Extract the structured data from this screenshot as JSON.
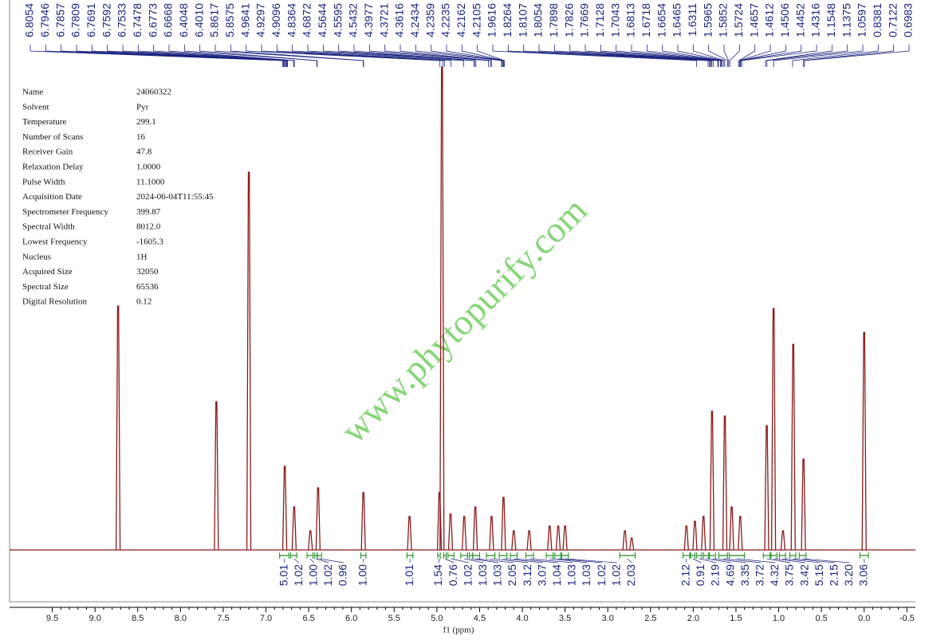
{
  "chart_data": {
    "type": "spectrum",
    "xlabel": "f1 (ppm)",
    "watermark": "www.phytopurify.com",
    "color": "#8b1a1a",
    "xlim": [
      10.0,
      -0.6
    ],
    "ylim": [
      0,
      100
    ],
    "xticks": [
      9.5,
      {
        "value": 9,
        "label": "9.0"
      },
      8.5,
      {
        "value": 8,
        "label": "8.0"
      },
      7.5,
      {
        "value": 7,
        "label": "7.0"
      },
      6.5,
      {
        "value": 6,
        "label": "6.0"
      },
      5.5,
      {
        "value": 5,
        "label": "5.0"
      },
      4.5,
      {
        "value": 4,
        "label": "4.0"
      },
      3.5,
      {
        "value": 3,
        "label": "3.0"
      },
      2.5,
      {
        "value": 2,
        "label": "2.0"
      },
      1.5,
      {
        "value": 1,
        "label": "1.0"
      },
      0.5,
      {
        "value": 0,
        "label": "0.0"
      },
      -0.5
    ],
    "x": [
      8.73,
      7.58,
      7.2,
      6.78,
      6.67,
      6.48,
      6.39,
      5.86,
      5.32,
      4.97,
      4.94,
      4.84,
      4.68,
      4.55,
      4.36,
      4.22,
      4.1,
      3.92,
      3.68,
      3.58,
      3.5,
      2.8,
      2.72,
      2.08,
      1.98,
      1.88,
      1.78,
      1.63,
      1.55,
      1.45,
      1.14,
      1.06,
      0.95,
      0.83,
      0.71,
      0.0
    ],
    "values": [
      51,
      31,
      79,
      17.5,
      9,
      4,
      13,
      12,
      7,
      12,
      101,
      7.5,
      7,
      9,
      7,
      11,
      4,
      4,
      5,
      5,
      5,
      4,
      2.5,
      5,
      6,
      7,
      29,
      28,
      9,
      7,
      26,
      50.5,
      4,
      43,
      19,
      45.5
    ],
    "peak_labels": [
      6.8054,
      6.7946,
      6.7857,
      6.7809,
      6.7691,
      6.7592,
      6.7533,
      6.7478,
      6.6773,
      6.6668,
      6.4048,
      {
        "value": 6.401,
        "label": "6.4010"
      },
      5.8617,
      5.8575,
      4.9641,
      4.9297,
      4.9096,
      4.8364,
      4.6872,
      4.5644,
      4.5595,
      4.5432,
      4.3977,
      4.3721,
      4.3616,
      4.2434,
      4.2359,
      4.2235,
      4.2162,
      4.2105,
      1.9616,
      1.8264,
      1.8107,
      1.8054,
      1.7898,
      1.7826,
      1.7669,
      1.7128,
      1.7043,
      1.6813,
      1.6718,
      1.6654,
      1.6465,
      1.6311,
      1.5965,
      1.5852,
      1.5724,
      1.4657,
      1.4612,
      1.4506,
      1.4452,
      1.4316,
      1.1548,
      1.1375,
      1.0597,
      0.8381,
      0.7122,
      0.6983
    ],
    "integrals": [
      {
        "value": 5.01,
        "range": [
          6.84,
          6.73
        ]
      },
      {
        "value": 1.02,
        "range": [
          6.71,
          6.64
        ]
      },
      {
        "value": 1,
        "label": "1.00",
        "range": [
          6.52,
          6.45
        ]
      },
      {
        "value": 1.02,
        "range": [
          6.43,
          6.4
        ]
      },
      {
        "value": 0.96,
        "range": [
          6.4,
          6.35
        ]
      },
      {
        "value": 1,
        "label": "1.00",
        "range": [
          5.89,
          5.83
        ]
      },
      {
        "value": 1.01,
        "range": [
          5.35,
          5.28
        ]
      },
      {
        "value": 1.54,
        "range": [
          4.99,
          4.96
        ]
      },
      {
        "value": 0.76,
        "range": [
          4.92,
          4.89
        ]
      },
      {
        "value": 1.02,
        "range": [
          4.87,
          4.8
        ]
      },
      {
        "value": 1.03,
        "range": [
          4.72,
          4.64
        ]
      },
      {
        "value": 1.03,
        "range": [
          4.62,
          4.58
        ]
      },
      {
        "value": 2.05,
        "range": [
          4.58,
          4.5
        ]
      },
      {
        "value": 3.12,
        "range": [
          4.42,
          4.32
        ]
      },
      {
        "value": 3.07,
        "range": [
          4.27,
          4.18
        ]
      },
      {
        "value": 1.04,
        "range": [
          4.14,
          4.06
        ]
      },
      {
        "value": 1.03,
        "range": [
          3.96,
          3.87
        ]
      },
      {
        "value": 1.03,
        "range": [
          3.72,
          3.64
        ]
      },
      {
        "value": 1.02,
        "range": [
          3.62,
          3.55
        ]
      },
      {
        "value": 1.02,
        "range": [
          3.54,
          3.46
        ]
      },
      {
        "value": 2.03,
        "range": [
          2.86,
          2.68
        ]
      },
      {
        "value": 2.12,
        "range": [
          2.12,
          2.04
        ]
      },
      {
        "value": 0.91,
        "range": [
          2.03,
          1.98
        ]
      },
      {
        "value": 2.19,
        "range": [
          1.96,
          1.9
        ]
      },
      {
        "value": 4.69,
        "range": [
          1.88,
          1.82
        ]
      },
      {
        "value": 3.35,
        "range": [
          1.81,
          1.74
        ]
      },
      {
        "value": 3.72,
        "range": [
          1.7,
          1.6
        ]
      },
      {
        "value": 4.32,
        "range": [
          1.58,
          1.4
        ]
      },
      {
        "value": 3.75,
        "range": [
          1.18,
          1.1
        ]
      },
      {
        "value": 3.42,
        "range": [
          1.09,
          1.02
        ]
      },
      {
        "value": 5.15,
        "range": [
          0.99,
          0.92
        ]
      },
      {
        "value": 2.15,
        "range": [
          0.87,
          0.8
        ]
      },
      {
        "value": 3.2,
        "label": "3.20",
        "range": [
          0.76,
          0.68
        ]
      },
      {
        "value": 3.06,
        "range": [
          0.05,
          -0.05
        ]
      }
    ],
    "parameters": [
      [
        "Name",
        "24060322"
      ],
      [
        "Solvent",
        "Pyr"
      ],
      [
        "Temperature",
        "299.1"
      ],
      [
        "Number of Scans",
        "16"
      ],
      [
        "Receiver Gain",
        "47.8"
      ],
      [
        "Relaxation Delay",
        "1.0000"
      ],
      [
        "Pulse Width",
        "11.1000"
      ],
      [
        "Acquisition Date",
        "2024-06-04T11:55:45"
      ],
      [
        "Spectrometer Frequency",
        "399.87"
      ],
      [
        "Spectral Width",
        "8012.0"
      ],
      [
        "Lowest Frequency",
        "-1605.3"
      ],
      [
        "Nucleus",
        "1H"
      ],
      [
        "Acquired Size",
        "32050"
      ],
      [
        "Spectral Size",
        "65536"
      ],
      [
        "Digital Resolution",
        "0.12"
      ]
    ]
  }
}
